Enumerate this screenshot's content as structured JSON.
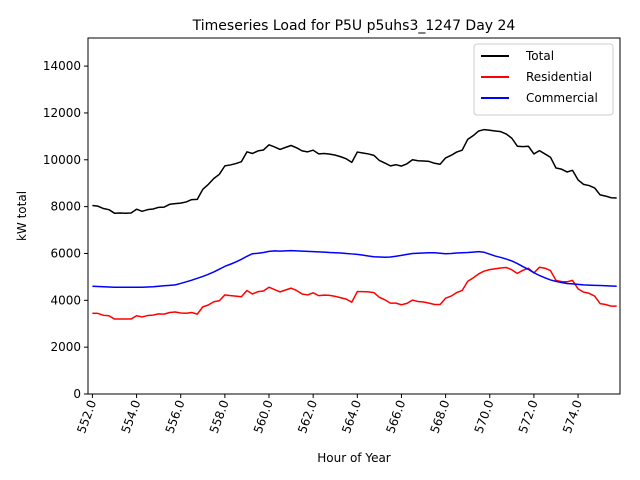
{
  "chart_data": {
    "type": "line",
    "title": "Timeseries Load for P5U p5uhs3_1247  Day 24",
    "xlabel": "Hour of Year",
    "ylabel": "kW total",
    "xlim": [
      551.8,
      575.9
    ],
    "ylim": [
      0,
      15200
    ],
    "x_ticks": [
      552.0,
      554.0,
      556.0,
      558.0,
      560.0,
      562.0,
      564.0,
      566.0,
      568.0,
      570.0,
      572.0,
      574.0
    ],
    "x_tick_labels": [
      "552.0",
      "554.0",
      "556.0",
      "558.0",
      "560.0",
      "562.0",
      "564.0",
      "566.0",
      "568.0",
      "570.0",
      "572.0",
      "574.0"
    ],
    "y_ticks": [
      0,
      2000,
      4000,
      6000,
      8000,
      10000,
      12000,
      14000
    ],
    "y_tick_labels": [
      "0",
      "2000",
      "4000",
      "6000",
      "8000",
      "10000",
      "12000",
      "14000"
    ],
    "legend_position": "top-right",
    "x_start": 552.0,
    "x_step": 0.25,
    "series": [
      {
        "name": "Total",
        "color": "#000000",
        "values": [
          8050,
          8020,
          7920,
          7870,
          7720,
          7730,
          7720,
          7730,
          7890,
          7800,
          7870,
          7900,
          7970,
          7980,
          8100,
          8130,
          8150,
          8200,
          8300,
          8310,
          8740,
          8950,
          9200,
          9380,
          9740,
          9780,
          9840,
          9920,
          10340,
          10270,
          10380,
          10420,
          10640,
          10550,
          10440,
          10530,
          10610,
          10510,
          10380,
          10340,
          10410,
          10250,
          10270,
          10240,
          10200,
          10130,
          10040,
          9890,
          10330,
          10290,
          10250,
          10190,
          9970,
          9860,
          9740,
          9790,
          9730,
          9830,
          10000,
          9960,
          9950,
          9930,
          9850,
          9810,
          10080,
          10190,
          10330,
          10410,
          10870,
          11030,
          11230,
          11290,
          11260,
          11230,
          11200,
          11100,
          10920,
          10580,
          10560,
          10580,
          10250,
          10390,
          10250,
          10110,
          9650,
          9600,
          9480,
          9550,
          9140,
          8950,
          8900,
          8800,
          8500,
          8450,
          8380,
          8370
        ]
      },
      {
        "name": "Residential",
        "color": "#ff0000",
        "values": [
          3450,
          3440,
          3360,
          3340,
          3200,
          3200,
          3200,
          3200,
          3340,
          3290,
          3350,
          3370,
          3420,
          3410,
          3480,
          3500,
          3460,
          3450,
          3480,
          3410,
          3720,
          3800,
          3940,
          3980,
          4230,
          4200,
          4180,
          4150,
          4420,
          4270,
          4370,
          4400,
          4560,
          4460,
          4360,
          4440,
          4520,
          4420,
          4270,
          4230,
          4320,
          4200,
          4220,
          4210,
          4170,
          4110,
          4050,
          3920,
          4370,
          4370,
          4360,
          4330,
          4130,
          4020,
          3880,
          3880,
          3810,
          3870,
          4010,
          3950,
          3930,
          3880,
          3820,
          3820,
          4090,
          4180,
          4330,
          4420,
          4810,
          4960,
          5130,
          5250,
          5310,
          5350,
          5380,
          5400,
          5300,
          5150,
          5280,
          5370,
          5170,
          5410,
          5370,
          5270,
          4850,
          4800,
          4790,
          4850,
          4490,
          4350,
          4300,
          4180,
          3860,
          3820,
          3750,
          3750
        ]
      },
      {
        "name": "Commercial",
        "color": "#0000ff",
        "values": [
          4600,
          4590,
          4580,
          4570,
          4560,
          4560,
          4560,
          4560,
          4560,
          4560,
          4570,
          4580,
          4600,
          4620,
          4640,
          4660,
          4720,
          4790,
          4860,
          4940,
          5020,
          5110,
          5210,
          5330,
          5450,
          5540,
          5640,
          5750,
          5880,
          5990,
          6010,
          6040,
          6090,
          6110,
          6100,
          6110,
          6120,
          6110,
          6100,
          6090,
          6080,
          6070,
          6060,
          6040,
          6030,
          6020,
          6000,
          5980,
          5960,
          5930,
          5890,
          5860,
          5850,
          5840,
          5850,
          5880,
          5920,
          5960,
          6000,
          6010,
          6020,
          6030,
          6030,
          6010,
          5990,
          6000,
          6020,
          6030,
          6040,
          6060,
          6080,
          6050,
          5970,
          5890,
          5830,
          5760,
          5680,
          5570,
          5440,
          5320,
          5180,
          5060,
          4960,
          4870,
          4810,
          4760,
          4720,
          4700,
          4680,
          4660,
          4650,
          4640,
          4630,
          4620,
          4610,
          4600
        ]
      }
    ]
  }
}
